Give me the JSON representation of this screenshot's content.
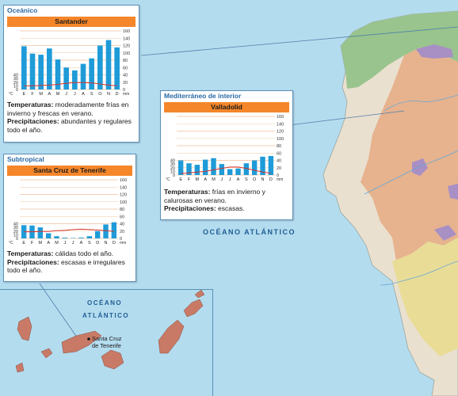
{
  "ocean_label": "OCÉANO ATLÁNTICO",
  "inset": {
    "ocean_line1": "OCÉANO",
    "ocean_line2": "ATLÁNTICO",
    "city_line1": "Santa Cruz",
    "city_line2": "de Tenerife"
  },
  "months": [
    "E",
    "F",
    "M",
    "A",
    "M",
    "J",
    "J",
    "A",
    "S",
    "O",
    "N",
    "D"
  ],
  "temp_unit": "°C",
  "precip_unit": "mm",
  "temp_ticks": [
    0,
    10,
    20,
    30,
    40
  ],
  "precip_ticks": [
    0,
    20,
    40,
    60,
    80,
    100,
    120,
    140,
    160
  ],
  "colors": {
    "precip_bar": "#1e9bd8",
    "temp_line": "#d7322a",
    "header": "#f5862a",
    "title": "#2a6aa6"
  },
  "climates": [
    {
      "climate": "Oceánico",
      "city": "Santander",
      "temperatures_label": "Temperaturas:",
      "temperatures_text": "moderadamente frías en invierno y frescas en verano.",
      "precipitation_label": "Precipitaciones:",
      "precipitation_text": "abundantes y regulares todo el año.",
      "chart_data": {
        "type": "bar",
        "categories": [
          "E",
          "F",
          "M",
          "A",
          "M",
          "J",
          "J",
          "A",
          "S",
          "O",
          "N",
          "D"
        ],
        "series": [
          {
            "values": [
              118,
              98,
              95,
              112,
              82,
              60,
              52,
              70,
              85,
              120,
              135,
              115
            ]
          },
          {
            "values": [
              10,
              10,
              11,
              12,
              14,
              17,
              19,
              19,
              18,
              15,
              12,
              10
            ]
          }
        ],
        "ylim_temp": [
          0,
          40
        ],
        "ylim_precip": [
          0,
          160
        ]
      }
    },
    {
      "climate": "Mediterráneo de interior",
      "city": "Valladolid",
      "temperatures_label": "Temperaturas:",
      "temperatures_text": "frías en invierno y calurosas en verano.",
      "precipitation_label": "Precipitaciones:",
      "precipitation_text": "escasas.",
      "chart_data": {
        "type": "bar",
        "categories": [
          "E",
          "F",
          "M",
          "A",
          "M",
          "J",
          "J",
          "A",
          "S",
          "O",
          "N",
          "D"
        ],
        "series": [
          {
            "values": [
              40,
              32,
              28,
              42,
              46,
              30,
              16,
              18,
              32,
              40,
              50,
              52
            ]
          },
          {
            "values": [
              4,
              6,
              8,
              10,
              14,
              18,
              22,
              22,
              18,
              13,
              8,
              5
            ]
          }
        ],
        "ylim_temp": [
          0,
          40
        ],
        "ylim_precip": [
          0,
          160
        ]
      }
    },
    {
      "climate": "Subtropical",
      "city": "Santa Cruz de Tenerife",
      "temperatures_label": "Temperaturas:",
      "temperatures_text": "cálidas todo el año.",
      "precipitation_label": "Precipitaciones:",
      "precipitation_text": "escasas e irregulares todo el año.",
      "chart_data": {
        "type": "bar",
        "categories": [
          "E",
          "F",
          "M",
          "A",
          "M",
          "J",
          "J",
          "A",
          "S",
          "O",
          "N",
          "D"
        ],
        "series": [
          {
            "values": [
              36,
              35,
              30,
              14,
              6,
              2,
              1,
              2,
              6,
              20,
              38,
              44
            ]
          },
          {
            "values": [
              18,
              18,
              19,
              19,
              21,
              22,
              24,
              25,
              24,
              23,
              21,
              19
            ]
          }
        ],
        "ylim_temp": [
          0,
          40
        ],
        "ylim_precip": [
          0,
          160
        ]
      }
    }
  ]
}
